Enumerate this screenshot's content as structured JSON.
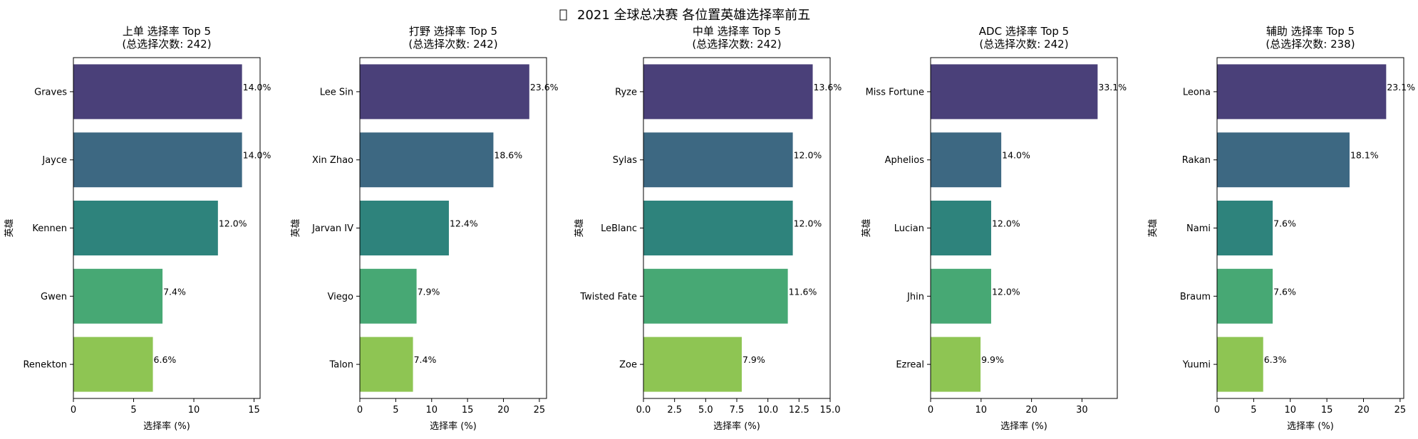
{
  "figure": {
    "title": "2021 全球总决赛 各位置英雄选择率前五",
    "title_icon": "missing-glyph-box"
  },
  "chart_data": [
    {
      "type": "bar",
      "orientation": "horizontal",
      "title": "上单 选择率 Top 5",
      "subtitle": "(总选择次数: 242)",
      "xlabel": "选择率 (%)",
      "ylabel": "英雄",
      "categories": [
        "Graves",
        "Jayce",
        "Kennen",
        "Gwen",
        "Renekton"
      ],
      "values": [
        14.0,
        14.0,
        12.0,
        7.4,
        6.6
      ],
      "value_labels": [
        "14.0%",
        "14.0%",
        "12.0%",
        "7.4%",
        "6.6%"
      ],
      "xlim": [
        0,
        15.5
      ],
      "xticks": [
        0,
        5,
        10,
        15
      ],
      "xtick_labels": [
        "0",
        "5",
        "10",
        "15"
      ],
      "grid": false
    },
    {
      "type": "bar",
      "orientation": "horizontal",
      "title": "打野 选择率 Top 5",
      "subtitle": "(总选择次数: 242)",
      "xlabel": "选择率 (%)",
      "ylabel": "英雄",
      "categories": [
        "Lee Sin",
        "Xin Zhao",
        "Jarvan IV",
        "Viego",
        "Talon"
      ],
      "values": [
        23.6,
        18.6,
        12.4,
        7.9,
        7.4
      ],
      "value_labels": [
        "23.6%",
        "18.6%",
        "12.4%",
        "7.9%",
        "7.4%"
      ],
      "xlim": [
        0,
        26
      ],
      "xticks": [
        0,
        5,
        10,
        15,
        20,
        25
      ],
      "xtick_labels": [
        "0",
        "5",
        "10",
        "15",
        "20",
        "25"
      ],
      "grid": false
    },
    {
      "type": "bar",
      "orientation": "horizontal",
      "title": "中单 选择率 Top 5",
      "subtitle": "(总选择次数: 242)",
      "xlabel": "选择率 (%)",
      "ylabel": "英雄",
      "categories": [
        "Ryze",
        "Sylas",
        "LeBlanc",
        "Twisted Fate",
        "Zoe"
      ],
      "values": [
        13.6,
        12.0,
        12.0,
        11.6,
        7.9
      ],
      "value_labels": [
        "13.6%",
        "12.0%",
        "12.0%",
        "11.6%",
        "7.9%"
      ],
      "xlim": [
        0,
        15
      ],
      "xticks": [
        0,
        2.5,
        5,
        7.5,
        10,
        12.5,
        15
      ],
      "xtick_labels": [
        "0.0",
        "2.5",
        "5.0",
        "7.5",
        "10.0",
        "12.5",
        "15.0"
      ],
      "grid": false
    },
    {
      "type": "bar",
      "orientation": "horizontal",
      "title": "ADC 选择率 Top 5",
      "subtitle": "(总选择次数: 242)",
      "xlabel": "选择率 (%)",
      "ylabel": "英雄",
      "categories": [
        "Miss Fortune",
        "Aphelios",
        "Lucian",
        "Jhin",
        "Ezreal"
      ],
      "values": [
        33.1,
        14.0,
        12.0,
        12.0,
        9.9
      ],
      "value_labels": [
        "33.1%",
        "14.0%",
        "12.0%",
        "12.0%",
        "9.9%"
      ],
      "xlim": [
        0,
        37
      ],
      "xticks": [
        0,
        10,
        20,
        30
      ],
      "xtick_labels": [
        "0",
        "10",
        "20",
        "30"
      ],
      "grid": false
    },
    {
      "type": "bar",
      "orientation": "horizontal",
      "title": "辅助 选择率 Top 5",
      "subtitle": "(总选择次数: 238)",
      "xlabel": "选择率 (%)",
      "ylabel": "英雄",
      "categories": [
        "Leona",
        "Rakan",
        "Nami",
        "Braum",
        "Yuumi"
      ],
      "values": [
        23.1,
        18.1,
        7.6,
        7.6,
        6.3
      ],
      "value_labels": [
        "23.1%",
        "18.1%",
        "7.6%",
        "7.6%",
        "6.3%"
      ],
      "xlim": [
        0,
        25.5
      ],
      "xticks": [
        0,
        5,
        10,
        15,
        20,
        25
      ],
      "xtick_labels": [
        "0",
        "5",
        "10",
        "15",
        "20",
        "25"
      ],
      "grid": false
    }
  ],
  "colors": {
    "bars": [
      "#4a4079",
      "#3d6882",
      "#2e837c",
      "#47a874",
      "#8ec553"
    ]
  }
}
